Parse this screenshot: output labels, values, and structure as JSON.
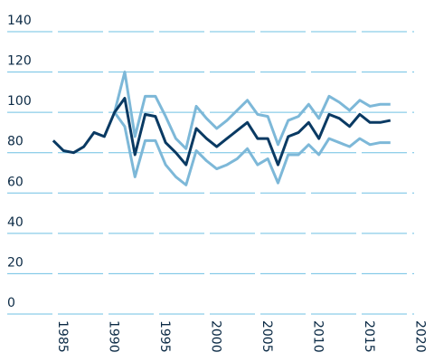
{
  "chart_data": {
    "type": "line",
    "x": [
      1984,
      1985,
      1986,
      1987,
      1988,
      1989,
      1990,
      1991,
      1992,
      1993,
      1994,
      1995,
      1996,
      1997,
      1998,
      1999,
      2000,
      2001,
      2002,
      2003,
      2004,
      2005,
      2006,
      2007,
      2008,
      2009,
      2010,
      2011,
      2012,
      2013,
      2014,
      2015,
      2016,
      2017
    ],
    "series": [
      {
        "color": "#7db8d8",
        "values": [
          null,
          null,
          null,
          null,
          null,
          null,
          100,
          120,
          88,
          108,
          108,
          98,
          87,
          82,
          103,
          97,
          92,
          96,
          101,
          106,
          99,
          98,
          84,
          96,
          98,
          104,
          97,
          108,
          105,
          101,
          106,
          103,
          104,
          104
        ]
      },
      {
        "color": "#7db8d8",
        "values": [
          null,
          null,
          null,
          null,
          null,
          null,
          100,
          93,
          68,
          86,
          86,
          74,
          68,
          64,
          81,
          76,
          72,
          74,
          77,
          82,
          74,
          77,
          65,
          79,
          79,
          84,
          79,
          87,
          85,
          83,
          87,
          84,
          85,
          85
        ]
      },
      {
        "color": "#0a3a63",
        "values": [
          86,
          81,
          80,
          83,
          90,
          88,
          100,
          107,
          79,
          99,
          98,
          85,
          80,
          74,
          92,
          87,
          83,
          87,
          91,
          95,
          87,
          87,
          74,
          88,
          90,
          95,
          87,
          99,
          97,
          93,
          99,
          95,
          95,
          96
        ]
      }
    ],
    "xlim": [
      1979.5,
      2021
    ],
    "xticks": [
      1985,
      1990,
      1995,
      2000,
      2005,
      2010,
      2015,
      2020
    ],
    "ylim": [
      0,
      140
    ],
    "yticks": [
      0,
      20,
      40,
      60,
      80,
      100,
      120,
      140
    ],
    "grid": true
  }
}
